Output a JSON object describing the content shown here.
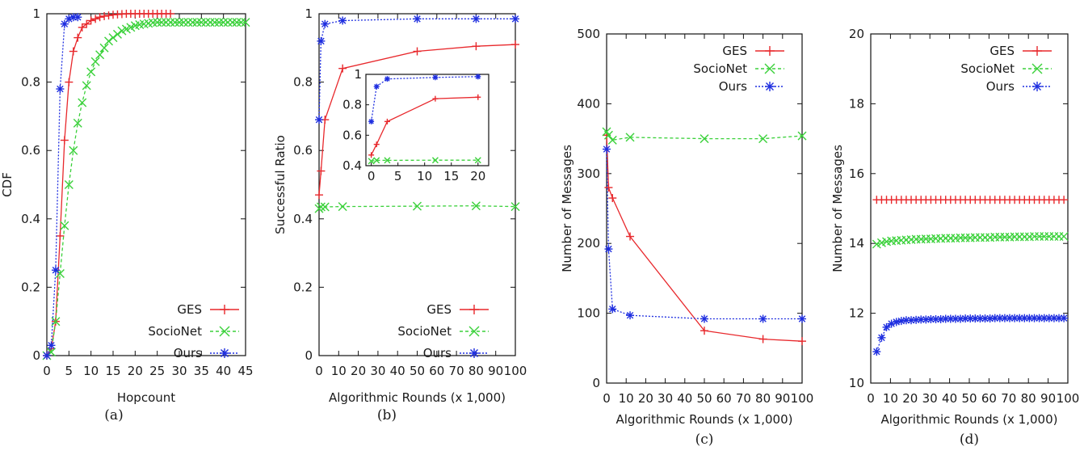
{
  "colors": {
    "GES": "#e8282c",
    "SocioNet": "#3bd13b",
    "Ours": "#1e2ee0"
  },
  "chart_data": [
    {
      "caption": "(a)",
      "type": "line",
      "xlabel": "Hopcount",
      "ylabel": "CDF",
      "xlim": [
        0,
        45
      ],
      "ylim": [
        0,
        1
      ],
      "xticks": [
        0,
        5,
        10,
        15,
        20,
        25,
        30,
        35,
        40,
        45
      ],
      "yticks": [
        0,
        0.2,
        0.4,
        0.6,
        0.8,
        1
      ],
      "ytick_labels": [
        "0",
        "0.2",
        "0.4",
        "0.6",
        "0.8",
        "1"
      ],
      "legend": "bottom-right",
      "series": [
        {
          "name": "GES",
          "key": "GES",
          "marker": "plus",
          "x": [
            0,
            1,
            2,
            3,
            4,
            5,
            6,
            7,
            8,
            9,
            10,
            11,
            12,
            13,
            14,
            15,
            16,
            17,
            18,
            19,
            20,
            21,
            22,
            23,
            24,
            25,
            26,
            27,
            28
          ],
          "y": [
            0,
            0.02,
            0.1,
            0.35,
            0.63,
            0.8,
            0.89,
            0.93,
            0.96,
            0.97,
            0.98,
            0.985,
            0.99,
            0.993,
            0.995,
            0.997,
            0.998,
            0.999,
            1,
            1,
            1,
            1,
            1,
            1,
            1,
            1,
            1,
            1,
            1
          ]
        },
        {
          "name": "SocioNet",
          "key": "SocioNet",
          "marker": "x",
          "x": [
            0,
            1,
            2,
            3,
            4,
            5,
            6,
            7,
            8,
            9,
            10,
            11,
            12,
            13,
            14,
            15,
            16,
            17,
            18,
            19,
            20,
            21,
            22,
            23,
            24,
            25,
            26,
            27,
            28,
            29,
            30,
            31,
            32,
            33,
            34,
            35,
            36,
            37,
            38,
            39,
            40,
            41,
            42,
            43,
            44,
            45
          ],
          "y": [
            0,
            0.01,
            0.1,
            0.24,
            0.38,
            0.5,
            0.6,
            0.68,
            0.74,
            0.79,
            0.83,
            0.86,
            0.88,
            0.9,
            0.92,
            0.93,
            0.94,
            0.95,
            0.955,
            0.96,
            0.965,
            0.968,
            0.97,
            0.972,
            0.974,
            0.975,
            0.975,
            0.975,
            0.975,
            0.975,
            0.975,
            0.975,
            0.975,
            0.975,
            0.975,
            0.975,
            0.975,
            0.975,
            0.975,
            0.975,
            0.975,
            0.975,
            0.975,
            0.975,
            0.975,
            0.975
          ]
        },
        {
          "name": "Ours",
          "key": "Ours",
          "marker": "star",
          "x": [
            0,
            1,
            2,
            3,
            4,
            5,
            6,
            7
          ],
          "y": [
            0,
            0.03,
            0.25,
            0.78,
            0.97,
            0.985,
            0.99,
            0.99
          ]
        }
      ]
    },
    {
      "caption": "(b)",
      "type": "line",
      "xlabel": "Algorithmic Rounds (x 1,000)",
      "ylabel": "Successful Ratio",
      "xlim": [
        0,
        100
      ],
      "ylim": [
        0,
        1
      ],
      "xticks": [
        0,
        10,
        20,
        30,
        40,
        50,
        60,
        70,
        80,
        90,
        100
      ],
      "yticks": [
        0,
        0.2,
        0.4,
        0.6,
        0.8,
        1
      ],
      "ytick_labels": [
        "0",
        "0.2",
        "0.4",
        "0.6",
        "0.8",
        "1"
      ],
      "legend": "bottom-right",
      "series": [
        {
          "name": "GES",
          "key": "GES",
          "marker": "plus",
          "x": [
            0,
            1,
            3,
            12,
            50,
            80,
            100
          ],
          "y": [
            0.47,
            0.54,
            0.69,
            0.84,
            0.89,
            0.905,
            0.91
          ]
        },
        {
          "name": "SocioNet",
          "key": "SocioNet",
          "marker": "x",
          "x": [
            0,
            1,
            3,
            12,
            50,
            80,
            100
          ],
          "y": [
            0.43,
            0.435,
            0.435,
            0.436,
            0.437,
            0.438,
            0.436
          ]
        },
        {
          "name": "Ours",
          "key": "Ours",
          "marker": "star",
          "x": [
            0,
            1,
            3,
            12,
            50,
            80,
            100
          ],
          "y": [
            0.69,
            0.92,
            0.97,
            0.98,
            0.985,
            0.985,
            0.985
          ]
        }
      ],
      "inset": {
        "xlim": [
          -1,
          22
        ],
        "ylim": [
          0.4,
          1
        ],
        "xticks": [
          0,
          5,
          10,
          15,
          20
        ],
        "yticks": [
          0.4,
          0.6,
          0.8,
          1
        ],
        "ytick_labels": [
          "0.4",
          "0.6",
          "0.8",
          "1"
        ],
        "series": [
          {
            "key": "GES",
            "marker": "plus",
            "x": [
              0,
              1,
              3,
              12,
              20
            ],
            "y": [
              0.47,
              0.54,
              0.69,
              0.84,
              0.85
            ]
          },
          {
            "key": "SocioNet",
            "marker": "x",
            "x": [
              0,
              1,
              3,
              12,
              20
            ],
            "y": [
              0.43,
              0.435,
              0.435,
              0.436,
              0.436
            ]
          },
          {
            "key": "Ours",
            "marker": "star",
            "x": [
              0,
              1,
              3,
              12,
              20
            ],
            "y": [
              0.69,
              0.92,
              0.97,
              0.98,
              0.985
            ]
          }
        ]
      }
    },
    {
      "caption": "(c)",
      "type": "line",
      "xlabel": "Algorithmic Rounds (x 1,000)",
      "ylabel": "Number of Messages",
      "xlim": [
        0,
        100
      ],
      "ylim": [
        0,
        500
      ],
      "xticks": [
        0,
        10,
        20,
        30,
        40,
        50,
        60,
        70,
        80,
        90,
        100
      ],
      "yticks": [
        0,
        100,
        200,
        300,
        400,
        500
      ],
      "ytick_labels": [
        "0",
        "100",
        "200",
        "300",
        "400",
        "500"
      ],
      "legend": "top-right",
      "series": [
        {
          "name": "GES",
          "key": "GES",
          "marker": "plus",
          "x": [
            0,
            1,
            3,
            12,
            50,
            80,
            100
          ],
          "y": [
            355,
            280,
            265,
            210,
            75,
            63,
            60
          ]
        },
        {
          "name": "SocioNet",
          "key": "SocioNet",
          "marker": "x",
          "x": [
            0,
            1,
            3,
            12,
            50,
            80,
            100
          ],
          "y": [
            360,
            355,
            348,
            352,
            350,
            350,
            354
          ]
        },
        {
          "name": "Ours",
          "key": "Ours",
          "marker": "star",
          "x": [
            0,
            1,
            3,
            12,
            50,
            80,
            100
          ],
          "y": [
            335,
            192,
            106,
            97,
            92,
            92,
            92
          ]
        }
      ]
    },
    {
      "caption": "(d)",
      "type": "line",
      "xlabel": "Algorithmic Rounds (x 1,000)",
      "ylabel": "Number of Messages",
      "xlim": [
        0,
        100
      ],
      "ylim": [
        10,
        20
      ],
      "xticks": [
        0,
        10,
        20,
        30,
        40,
        50,
        60,
        70,
        80,
        90,
        100
      ],
      "yticks": [
        10,
        12,
        14,
        16,
        18,
        20
      ],
      "ytick_labels": [
        "10",
        "12",
        "14",
        "16",
        "18",
        "20"
      ],
      "legend": "top-right",
      "series": [
        {
          "name": "GES",
          "key": "GES",
          "marker": "plus",
          "start": 3,
          "step": 2.5,
          "y": [
            15.25,
            15.25,
            15.25,
            15.25,
            15.25,
            15.25,
            15.25,
            15.25,
            15.25,
            15.25,
            15.25,
            15.25,
            15.25,
            15.25,
            15.25,
            15.25,
            15.25,
            15.25,
            15.25,
            15.25,
            15.25,
            15.25,
            15.25,
            15.25,
            15.25,
            15.25,
            15.25,
            15.25,
            15.25,
            15.25,
            15.25,
            15.25,
            15.25,
            15.25,
            15.25,
            15.25,
            15.25,
            15.25,
            15.25
          ]
        },
        {
          "name": "SocioNet",
          "key": "SocioNet",
          "marker": "x",
          "start": 3,
          "step": 2.5,
          "y": [
            13.98,
            14.02,
            14.05,
            14.07,
            14.08,
            14.09,
            14.1,
            14.11,
            14.12,
            14.12,
            14.13,
            14.13,
            14.14,
            14.14,
            14.15,
            14.15,
            14.15,
            14.16,
            14.16,
            14.16,
            14.17,
            14.17,
            14.17,
            14.17,
            14.18,
            14.18,
            14.18,
            14.18,
            14.19,
            14.19,
            14.19,
            14.19,
            14.2,
            14.2,
            14.2,
            14.2,
            14.2,
            14.2,
            14.2
          ]
        },
        {
          "name": "Ours",
          "key": "Ours",
          "marker": "star",
          "start": 3,
          "step": 2.5,
          "y": [
            10.9,
            11.3,
            11.6,
            11.7,
            11.75,
            11.78,
            11.8,
            11.8,
            11.81,
            11.82,
            11.82,
            11.83,
            11.83,
            11.83,
            11.84,
            11.84,
            11.84,
            11.84,
            11.85,
            11.85,
            11.85,
            11.85,
            11.85,
            11.85,
            11.86,
            11.86,
            11.86,
            11.86,
            11.86,
            11.86,
            11.86,
            11.86,
            11.86,
            11.86,
            11.86,
            11.86,
            11.86,
            11.86,
            11.86
          ]
        }
      ]
    }
  ]
}
